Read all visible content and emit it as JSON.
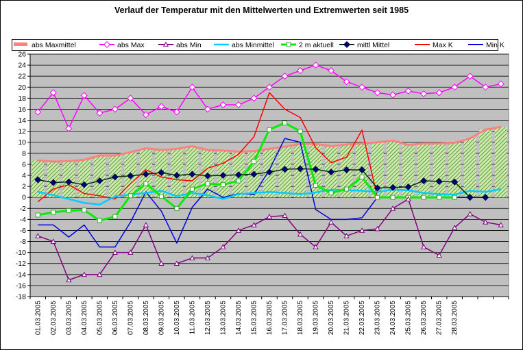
{
  "chart_data": {
    "type": "line",
    "title": "Verlauf der Temperatur mit den Mittelwerten und Extremwerten seit 1985",
    "xlabel": "",
    "ylabel": "",
    "ylim": [
      -18,
      26
    ],
    "y_ticks": [
      26,
      24,
      22,
      20,
      18,
      16,
      14,
      12,
      10,
      8,
      6,
      4,
      2,
      0,
      -2,
      -4,
      -6,
      -8,
      -10,
      -12,
      -14,
      -16,
      -18
    ],
    "grid": true,
    "legend_position": "top",
    "categories": [
      "01.03.2005",
      "02.03.2005",
      "03.03.2005",
      "04.03.2005",
      "05.03.2005",
      "06.03.2005",
      "07.03.2005",
      "08.03.2005",
      "09.03.2005",
      "10.03.2005",
      "11.03.2005",
      "12.03.2005",
      "13.03.2005",
      "14.03.2005",
      "15.03.2005",
      "16.03.2005",
      "17.03.2005",
      "18.03.2005",
      "19.03.2005",
      "20.03.2005",
      "21.03.2005",
      "22.03.2005",
      "23.03.2005",
      "24.03.2005",
      "25.03.2005",
      "26.03.2005",
      "27.03.2005",
      "28.03.2005",
      "",
      "",
      ""
    ],
    "colors": {
      "plot_background": "#c0c0c0",
      "bar_fill": "#cfe8b0",
      "bar_hatch": "#3a8c1c"
    },
    "series": [
      {
        "name": "abs Maxmittel",
        "style": "area",
        "color": "#ff8080",
        "values": [
          6.7,
          6.5,
          6.6,
          6.8,
          7.6,
          7.6,
          8.2,
          8.9,
          8.6,
          8.8,
          9.3,
          8.6,
          8.5,
          8.3,
          8.4,
          8.8,
          9.2,
          9.7,
          9.7,
          9.3,
          9.6,
          9.8,
          10.0,
          10.3,
          9.5,
          9.8,
          9.8,
          9.9,
          10.7,
          12.3,
          12.8
        ]
      },
      {
        "name": "abs Max",
        "style": "line-marker",
        "marker": "diamond-open",
        "color": "#ff00ff",
        "values": [
          15.5,
          19.0,
          12.5,
          18.5,
          15.3,
          16.0,
          18.0,
          15.0,
          16.5,
          15.5,
          20.0,
          16.0,
          16.8,
          16.8,
          18.0,
          20.0,
          22.0,
          23.0,
          24.0,
          23.0,
          21.0,
          20.0,
          19.0,
          18.6,
          19.3,
          18.8,
          19.0,
          20.0,
          22.0,
          20.0,
          20.6
        ]
      },
      {
        "name": "abs Min",
        "style": "line-marker",
        "marker": "triangle-open",
        "color": "#800080",
        "values": [
          -7.0,
          -8.0,
          -15.0,
          -14.0,
          -14.0,
          -10.0,
          -10.0,
          -5.0,
          -12.0,
          -12.0,
          -11.0,
          -11.0,
          -9.0,
          -6.0,
          -5.0,
          -3.5,
          -3.3,
          -6.7,
          -9.0,
          -4.5,
          -7.0,
          -6.0,
          -5.7,
          -2.0,
          -0.3,
          -9.0,
          -10.5,
          -5.5,
          -3.0,
          -4.5,
          -5.0
        ]
      },
      {
        "name": "abs Minmittel",
        "style": "line",
        "color": "#00ccff",
        "values": [
          1.0,
          0.4,
          -0.3,
          -1.0,
          -1.3,
          0.2,
          0.5,
          0.8,
          1.2,
          0.2,
          0.8,
          0.4,
          -0.3,
          0.6,
          0.8,
          1.0,
          0.8,
          0.6,
          0.9,
          1.4,
          1.3,
          1.2,
          1.0,
          1.4,
          1.3,
          0.8,
          0.6,
          0.5,
          1.2,
          1.0,
          1.5
        ]
      },
      {
        "name": "2 m aktuell",
        "style": "line-marker",
        "marker": "square-open",
        "color": "#00ee00",
        "values": [
          -3.2,
          -2.7,
          -2.4,
          -2.3,
          -4.2,
          -3.5,
          0.3,
          2.5,
          0.2,
          -2.0,
          1.5,
          2.5,
          2.3,
          3.0,
          6.5,
          12.3,
          13.5,
          12.0,
          2.2,
          0.8,
          1.5,
          3.7,
          0,
          0,
          0,
          0,
          0,
          0,
          null,
          null,
          null
        ]
      },
      {
        "name": "mittl Mittel",
        "style": "line-marker",
        "marker": "diamond-filled",
        "color": "#003300",
        "values": [
          3.2,
          2.7,
          2.8,
          2.3,
          3.0,
          3.7,
          3.9,
          4.2,
          4.5,
          4.0,
          4.2,
          3.9,
          4.0,
          4.1,
          4.2,
          4.6,
          5.1,
          5.2,
          5.1,
          4.6,
          5.0,
          5.0,
          1.7,
          1.8,
          1.9,
          3.0,
          2.9,
          2.8,
          0,
          0,
          null
        ]
      },
      {
        "name": "Max K",
        "style": "line",
        "color": "#ff0000",
        "values": [
          -0.8,
          1.5,
          2.3,
          0.7,
          0.3,
          -0.3,
          2.5,
          5.0,
          3.7,
          3.2,
          3.0,
          5.3,
          6.2,
          7.8,
          11.0,
          19.0,
          16.0,
          14.5,
          9.0,
          6.3,
          7.3,
          12.2,
          0,
          0,
          0,
          0,
          0,
          0,
          0,
          0,
          null
        ]
      },
      {
        "name": "Min K",
        "style": "line",
        "color": "#0000dd",
        "values": [
          -5.0,
          -5.0,
          -7.2,
          -5.0,
          -9.0,
          -9.0,
          -4.5,
          1.0,
          -2.5,
          -8.3,
          -1.8,
          1.5,
          0,
          0.7,
          0.5,
          5.0,
          10.7,
          10.0,
          -2.2,
          -4.0,
          -4.0,
          -3.7,
          0,
          0,
          0,
          0,
          0,
          0,
          0,
          0,
          null
        ]
      }
    ]
  }
}
